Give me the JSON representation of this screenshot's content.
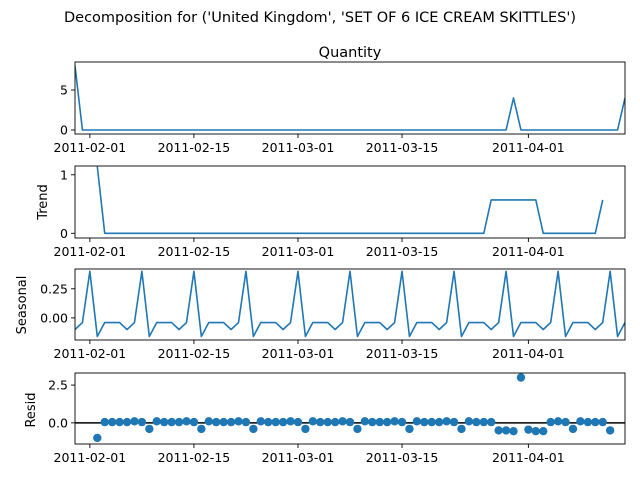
{
  "suptitle": "Decomposition for ('United Kingdom', 'SET OF 6 ICE CREAM SKITTLES')",
  "colors": {
    "line": "#1f77b4",
    "zero_line": "#000000",
    "axes": "#000000"
  },
  "chart_data": [
    {
      "type": "line",
      "title": "Quantity",
      "ylabel": "",
      "x_start": "2011-01-30",
      "x_end": "2011-04-14",
      "xlim": [
        "2011-01-30",
        "2011-04-14"
      ],
      "ylim": [
        -0.5,
        8.5
      ],
      "yticks": [
        0,
        5
      ],
      "xticks": [
        "2011-02-01",
        "2011-02-15",
        "2011-03-01",
        "2011-03-15",
        "2011-04-01"
      ],
      "values": [
        8,
        0,
        0,
        0,
        0,
        0,
        0,
        0,
        0,
        0,
        0,
        0,
        0,
        0,
        0,
        0,
        0,
        0,
        0,
        0,
        0,
        0,
        0,
        0,
        0,
        0,
        0,
        0,
        0,
        0,
        0,
        0,
        0,
        0,
        0,
        0,
        0,
        0,
        0,
        0,
        0,
        0,
        0,
        0,
        0,
        0,
        0,
        0,
        0,
        0,
        0,
        0,
        0,
        0,
        0,
        0,
        0,
        0,
        0,
        4,
        0,
        0,
        0,
        0,
        0,
        0,
        0,
        0,
        0,
        0,
        0,
        0,
        0,
        0,
        4
      ]
    },
    {
      "type": "line",
      "title": "",
      "ylabel": "Trend",
      "x_start": "2011-01-30",
      "x_end": "2011-04-14",
      "xlim": [
        "2011-01-30",
        "2011-04-14"
      ],
      "ylim": [
        -0.08,
        1.15
      ],
      "yticks": [
        0,
        1
      ],
      "xticks": [
        "2011-02-01",
        "2011-02-15",
        "2011-03-01",
        "2011-03-15",
        "2011-04-01"
      ],
      "values": [
        null,
        null,
        null,
        1.14,
        0,
        0,
        0,
        0,
        0,
        0,
        0,
        0,
        0,
        0,
        0,
        0,
        0,
        0,
        0,
        0,
        0,
        0,
        0,
        0,
        0,
        0,
        0,
        0,
        0,
        0,
        0,
        0,
        0,
        0,
        0,
        0,
        0,
        0,
        0,
        0,
        0,
        0,
        0,
        0,
        0,
        0,
        0,
        0,
        0,
        0,
        0,
        0,
        0,
        0,
        0,
        0,
        0.57,
        0.57,
        0.57,
        0.57,
        0.57,
        0.57,
        0.57,
        0,
        0,
        0,
        0,
        0,
        0,
        0,
        0,
        0.57,
        null,
        null,
        null
      ]
    },
    {
      "type": "line",
      "title": "",
      "ylabel": "Seasonal",
      "x_start": "2011-01-30",
      "x_end": "2011-04-14",
      "xlim": [
        "2011-01-30",
        "2011-04-14"
      ],
      "ylim": [
        -0.19,
        0.42
      ],
      "yticks": [
        0.0,
        0.25
      ],
      "xticks": [
        "2011-02-01",
        "2011-02-15",
        "2011-03-01",
        "2011-03-15",
        "2011-04-01"
      ],
      "period_values": [
        0.4,
        -0.16,
        -0.04,
        -0.04,
        -0.04,
        -0.1,
        -0.04
      ],
      "offset": 2,
      "count": 75
    },
    {
      "type": "scatter",
      "title": "",
      "ylabel": "Resid",
      "x_start": "2011-01-30",
      "x_end": "2011-04-14",
      "xlim": [
        "2011-01-30",
        "2011-04-14"
      ],
      "ylim": [
        -1.4,
        3.3
      ],
      "yticks": [
        0.0,
        2.5
      ],
      "xticks": [
        "2011-02-01",
        "2011-02-15",
        "2011-03-01",
        "2011-03-15",
        "2011-04-01"
      ],
      "zero_line": true,
      "values": [
        null,
        null,
        null,
        -1,
        0.05,
        0.05,
        0.05,
        0.05,
        0.1,
        0.05,
        -0.4,
        0.1,
        0.05,
        0.05,
        0.05,
        0.1,
        0.05,
        -0.4,
        0.1,
        0.05,
        0.05,
        0.05,
        0.1,
        0.05,
        -0.4,
        0.1,
        0.05,
        0.05,
        0.05,
        0.1,
        0.05,
        -0.4,
        0.1,
        0.05,
        0.05,
        0.05,
        0.1,
        0.05,
        -0.4,
        0.1,
        0.05,
        0.05,
        0.05,
        0.1,
        0.05,
        -0.4,
        0.1,
        0.05,
        0.05,
        0.05,
        0.1,
        0.05,
        -0.4,
        0.1,
        0.05,
        0.05,
        0.05,
        -0.5,
        -0.5,
        -0.55,
        3,
        -0.45,
        -0.55,
        -0.55,
        0.05,
        0.1,
        0.05,
        -0.4,
        0.1,
        0.05,
        0.05,
        0.05,
        -0.5,
        null,
        null,
        null
      ]
    }
  ]
}
